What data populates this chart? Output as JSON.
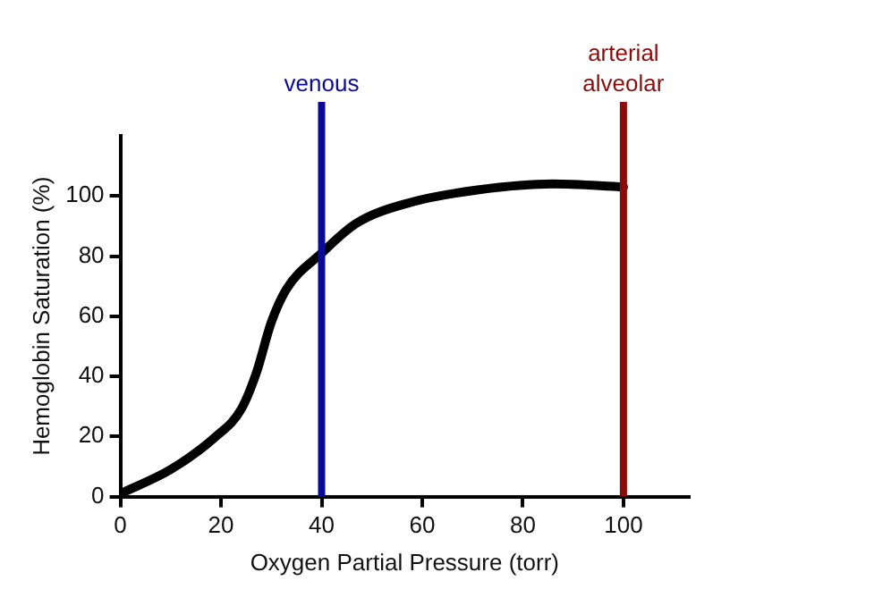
{
  "chart_data": {
    "type": "line",
    "xlabel": "Oxygen Partial Pressure (torr)",
    "ylabel": "Hemoglobin Saturation (%)",
    "x": [
      0,
      10,
      19,
      24,
      27,
      30,
      33,
      40,
      47,
      58,
      71,
      86,
      100
    ],
    "series": [
      {
        "color": "#000000",
        "values": [
          1,
          9,
          20,
          29,
          41,
          58,
          69,
          81,
          91,
          98,
          102,
          104,
          103
        ]
      }
    ],
    "xlim": [
      0,
      113
    ],
    "xticks": [
      0,
      20,
      40,
      60,
      80,
      100
    ],
    "ylim": [
      0,
      120
    ],
    "yticks": [
      0,
      20,
      40,
      60,
      80,
      100
    ],
    "marker": "none",
    "legend": false,
    "ref_lines": [
      {
        "axis": "x",
        "value": 40,
        "label": "venous",
        "color": "#0a0a96"
      },
      {
        "axis": "x",
        "value": 100,
        "label": "arterial alveolar",
        "color": "#8b0a0a"
      }
    ]
  }
}
